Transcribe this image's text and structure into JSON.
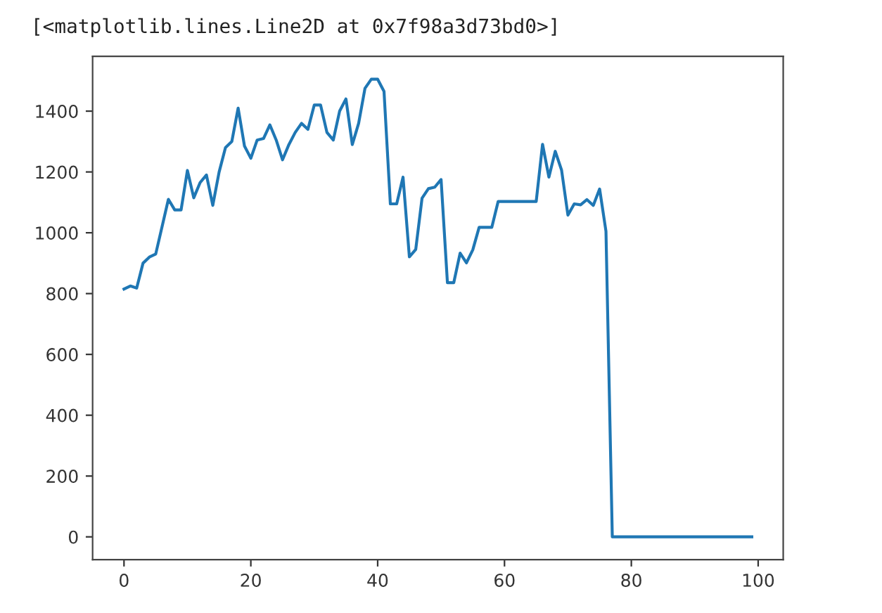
{
  "chart_data": {
    "type": "line",
    "annotations": [
      "[<matplotlib.lines.Line2D at 0x7f98a3d73bd0>]"
    ],
    "x": [
      0,
      1,
      2,
      3,
      4,
      5,
      6,
      7,
      8,
      9,
      10,
      11,
      12,
      13,
      14,
      15,
      16,
      17,
      18,
      19,
      20,
      21,
      22,
      23,
      24,
      25,
      26,
      27,
      28,
      29,
      30,
      31,
      32,
      33,
      34,
      35,
      36,
      37,
      38,
      39,
      40,
      41,
      42,
      43,
      44,
      45,
      46,
      47,
      48,
      49,
      50,
      51,
      52,
      53,
      54,
      55,
      56,
      57,
      58,
      59,
      60,
      61,
      62,
      63,
      64,
      65,
      66,
      67,
      68,
      69,
      70,
      71,
      72,
      73,
      74,
      75,
      76,
      77,
      78,
      79,
      80,
      81,
      82,
      83,
      84,
      85,
      86,
      87,
      88,
      89,
      90,
      91,
      92,
      93,
      94,
      95,
      96,
      97,
      98,
      99
    ],
    "series": [
      {
        "color": "#1f77b4",
        "values": [
          815,
          825,
          818,
          900,
          920,
          930,
          1020,
          1110,
          1075,
          1075,
          1205,
          1115,
          1165,
          1190,
          1090,
          1200,
          1280,
          1300,
          1410,
          1285,
          1245,
          1305,
          1310,
          1355,
          1305,
          1240,
          1290,
          1330,
          1360,
          1340,
          1420,
          1420,
          1330,
          1305,
          1400,
          1440,
          1290,
          1360,
          1475,
          1505,
          1505,
          1465,
          1095,
          1095,
          1183,
          921,
          945,
          1114,
          1145,
          1150,
          1175,
          836,
          836,
          933,
          901,
          944,
          1018,
          1018,
          1018,
          1103,
          1103,
          1103,
          1103,
          1103,
          1103,
          1103,
          1291,
          1183,
          1268,
          1206,
          1058,
          1095,
          1092,
          1109,
          1090,
          1144,
          1005,
          0,
          0,
          0,
          0,
          0,
          0,
          0,
          0,
          0,
          0,
          0,
          0,
          0,
          0,
          0,
          0,
          0,
          0,
          0,
          0,
          0,
          0,
          0
        ]
      }
    ],
    "xlim": [
      -4.95,
      103.95
    ],
    "xticks": [
      0,
      20,
      40,
      60,
      80,
      100
    ],
    "ylim": [
      -75,
      1580
    ],
    "yticks": [
      0,
      200,
      400,
      600,
      800,
      1000,
      1200,
      1400
    ]
  }
}
